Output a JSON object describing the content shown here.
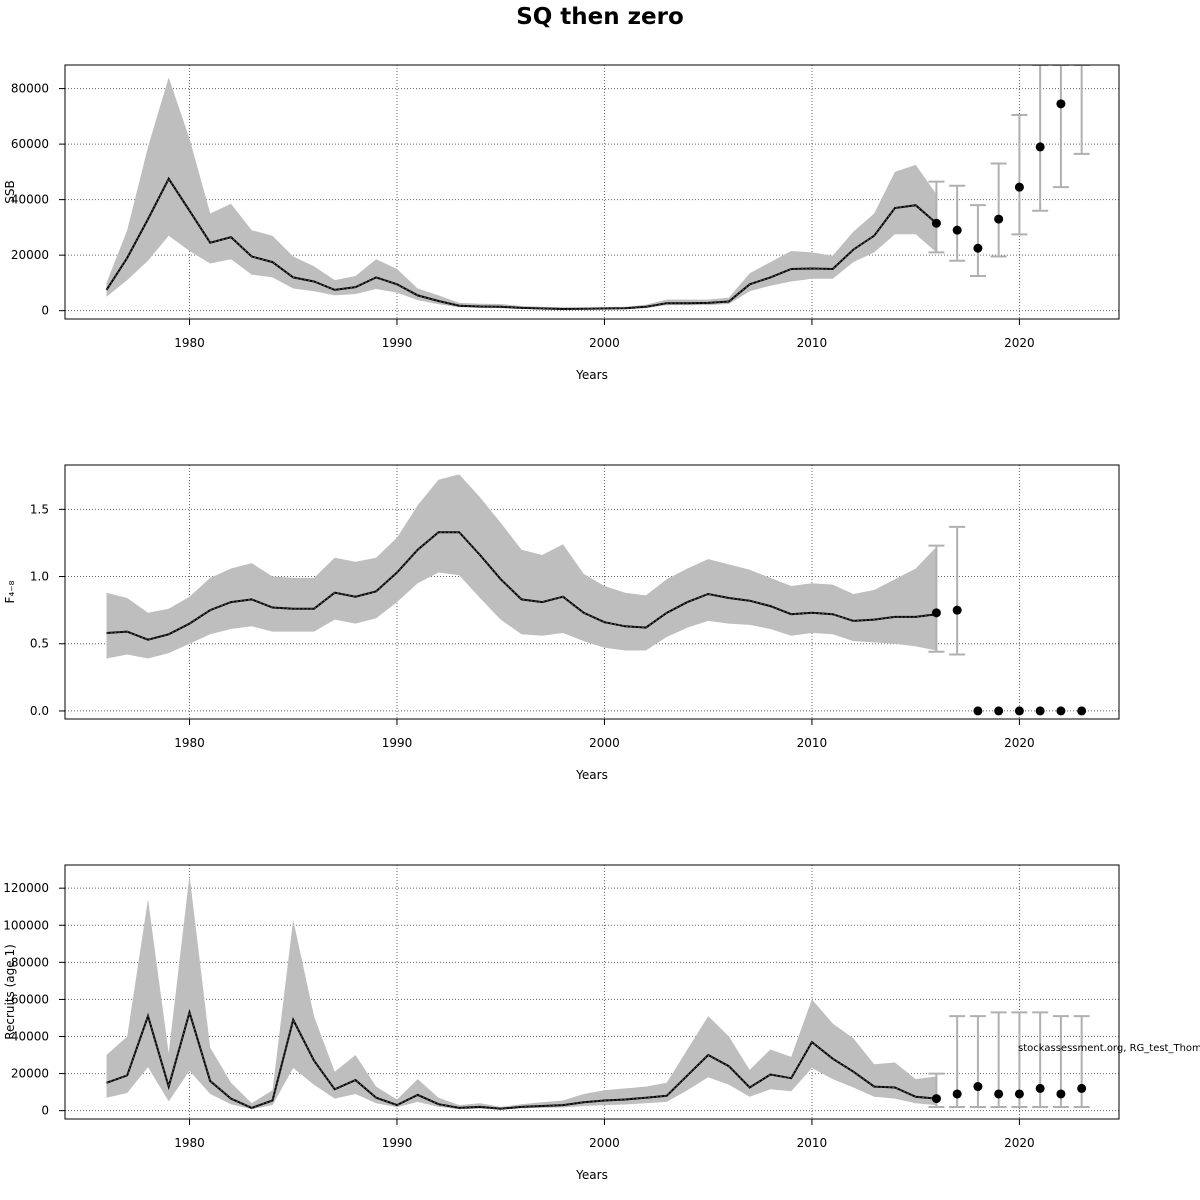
{
  "chart_data": {
    "title": "SQ then zero",
    "credit": "stockassessment.org, RG_test_Thom",
    "colors": {
      "band": "#bebebe",
      "line": "#000000",
      "grid": "#666666",
      "errorbar": "#b0b0b0",
      "point": "#000000"
    },
    "panels": [
      {
        "type": "line",
        "ylabel": "SSB",
        "xlabel": "Years",
        "xlim": [
          1974,
          2024.8
        ],
        "ylim": [
          -3000,
          88500
        ],
        "xticks": [
          1980,
          1990,
          2000,
          2010,
          2020
        ],
        "yticks": [
          0,
          20000,
          40000,
          60000,
          80000
        ],
        "grid": true,
        "estimate": {
          "years": [
            1976,
            1977,
            1978,
            1979,
            1980,
            1981,
            1982,
            1983,
            1984,
            1985,
            1986,
            1987,
            1988,
            1989,
            1990,
            1991,
            1992,
            1993,
            1994,
            1995,
            1996,
            1997,
            1998,
            1999,
            2000,
            2001,
            2002,
            2003,
            2004,
            2005,
            2006,
            2007,
            2008,
            2009,
            2010,
            2011,
            2012,
            2013,
            2014,
            2015,
            2016
          ],
          "mid": [
            7500,
            19000,
            33000,
            47500,
            36000,
            24500,
            26500,
            19500,
            17500,
            12000,
            10500,
            7500,
            8500,
            12000,
            9500,
            5500,
            3500,
            1800,
            1500,
            1400,
            1000,
            800,
            600,
            700,
            800,
            900,
            1400,
            2700,
            2700,
            2800,
            3300,
            9500,
            12000,
            15000,
            15200,
            15000,
            22000,
            27000,
            37000,
            38000,
            31500
          ],
          "low": [
            5000,
            11000,
            18000,
            27000,
            21500,
            17000,
            18500,
            13000,
            12000,
            8000,
            7000,
            5500,
            6000,
            7800,
            6500,
            3800,
            2300,
            1200,
            1000,
            900,
            600,
            500,
            400,
            400,
            500,
            600,
            900,
            2000,
            2000,
            2000,
            2400,
            7000,
            9000,
            10500,
            11500,
            11500,
            17500,
            21000,
            27500,
            27500,
            21000
          ],
          "high": [
            10000,
            29000,
            59000,
            84000,
            62000,
            35000,
            38500,
            29000,
            27000,
            19500,
            16000,
            11000,
            12500,
            18500,
            15000,
            8000,
            5500,
            2800,
            2500,
            2400,
            1700,
            1400,
            1200,
            1100,
            1300,
            1400,
            2100,
            4000,
            4000,
            4000,
            4700,
            13500,
            17500,
            21500,
            21000,
            19800,
            28500,
            35000,
            50000,
            52500,
            42000
          ]
        },
        "forecast": {
          "years": [
            2016,
            2017,
            2018,
            2019,
            2020,
            2021,
            2022,
            2023
          ],
          "median": [
            31500,
            29000,
            22500,
            33000,
            44500,
            59000,
            74500,
            null
          ],
          "low": [
            21000,
            18000,
            12500,
            19500,
            27500,
            36000,
            44500,
            56500
          ],
          "high": [
            46500,
            45000,
            38000,
            53000,
            70500,
            88500,
            88500,
            88500
          ]
        }
      },
      {
        "type": "line",
        "ylabel": "F₄₋₈",
        "xlabel": "Years",
        "xlim": [
          1974,
          2024.8
        ],
        "ylim": [
          -0.06,
          1.83
        ],
        "xticks": [
          1980,
          1990,
          2000,
          2010,
          2020
        ],
        "yticks": [
          0.0,
          0.5,
          1.0,
          1.5
        ],
        "ytick_labels": [
          "0.0",
          "0.5",
          "1.0",
          "1.5"
        ],
        "grid": true,
        "estimate": {
          "years": [
            1976,
            1977,
            1978,
            1979,
            1980,
            1981,
            1982,
            1983,
            1984,
            1985,
            1986,
            1987,
            1988,
            1989,
            1990,
            1991,
            1992,
            1993,
            1994,
            1995,
            1996,
            1997,
            1998,
            1999,
            2000,
            2001,
            2002,
            2003,
            2004,
            2005,
            2006,
            2007,
            2008,
            2009,
            2010,
            2011,
            2012,
            2013,
            2014,
            2015,
            2016
          ],
          "mid": [
            0.58,
            0.59,
            0.53,
            0.57,
            0.65,
            0.75,
            0.81,
            0.83,
            0.77,
            0.76,
            0.76,
            0.88,
            0.85,
            0.89,
            1.03,
            1.2,
            1.33,
            1.33,
            1.16,
            0.98,
            0.83,
            0.81,
            0.85,
            0.73,
            0.66,
            0.63,
            0.62,
            0.73,
            0.81,
            0.87,
            0.84,
            0.82,
            0.78,
            0.72,
            0.73,
            0.72,
            0.67,
            0.68,
            0.7,
            0.7,
            0.72
          ],
          "low": [
            0.39,
            0.42,
            0.39,
            0.43,
            0.5,
            0.57,
            0.61,
            0.63,
            0.59,
            0.59,
            0.59,
            0.68,
            0.65,
            0.69,
            0.81,
            0.95,
            1.03,
            1.01,
            0.84,
            0.68,
            0.57,
            0.56,
            0.58,
            0.52,
            0.47,
            0.45,
            0.45,
            0.55,
            0.62,
            0.67,
            0.65,
            0.64,
            0.61,
            0.56,
            0.58,
            0.57,
            0.52,
            0.51,
            0.5,
            0.48,
            0.45
          ],
          "high": [
            0.88,
            0.84,
            0.73,
            0.76,
            0.85,
            0.99,
            1.06,
            1.1,
            1.0,
            0.99,
            0.99,
            1.14,
            1.11,
            1.14,
            1.29,
            1.53,
            1.72,
            1.76,
            1.59,
            1.4,
            1.2,
            1.16,
            1.24,
            1.02,
            0.93,
            0.88,
            0.86,
            0.98,
            1.06,
            1.13,
            1.09,
            1.05,
            0.99,
            0.93,
            0.95,
            0.94,
            0.87,
            0.9,
            0.98,
            1.06,
            1.22
          ]
        },
        "forecast": {
          "years": [
            2016,
            2017,
            2018,
            2019,
            2020,
            2021,
            2022,
            2023
          ],
          "median": [
            0.73,
            0.75,
            0.0,
            0.0,
            0.0,
            0.0,
            0.0,
            0.0
          ],
          "low": [
            0.44,
            0.42,
            null,
            null,
            null,
            null,
            null,
            null
          ],
          "high": [
            1.23,
            1.37,
            null,
            null,
            null,
            null,
            null,
            null
          ]
        }
      },
      {
        "type": "line",
        "ylabel": "Recruits (age 1)",
        "xlabel": "Years",
        "xlim": [
          1974,
          2024.8
        ],
        "ylim": [
          -4500,
          132500
        ],
        "xticks": [
          1980,
          1990,
          2000,
          2010,
          2020
        ],
        "yticks": [
          0,
          20000,
          40000,
          60000,
          80000,
          100000,
          120000
        ],
        "grid": true,
        "estimate": {
          "years": [
            1976,
            1977,
            1978,
            1979,
            1980,
            1981,
            1982,
            1983,
            1984,
            1985,
            1986,
            1987,
            1988,
            1989,
            1990,
            1991,
            1992,
            1993,
            1994,
            1995,
            1996,
            1997,
            1998,
            1999,
            2000,
            2001,
            2002,
            2003,
            2004,
            2005,
            2006,
            2007,
            2008,
            2009,
            2010,
            2011,
            2012,
            2013,
            2014,
            2015,
            2016
          ],
          "mid": [
            15000,
            19000,
            51000,
            13000,
            53000,
            16000,
            6500,
            1500,
            5500,
            49000,
            27000,
            11500,
            16500,
            7000,
            3000,
            8500,
            3500,
            1500,
            2000,
            1000,
            2000,
            2500,
            3000,
            4500,
            5500,
            6000,
            7000,
            8000,
            19000,
            30000,
            24000,
            12500,
            19500,
            17500,
            37000,
            28000,
            21000,
            13000,
            12500,
            7500,
            6500
          ],
          "low": [
            7000,
            9500,
            23500,
            5000,
            21500,
            9000,
            3500,
            800,
            3000,
            23000,
            14000,
            6500,
            9000,
            4000,
            1800,
            4700,
            2000,
            800,
            1000,
            600,
            1200,
            1500,
            1700,
            2500,
            3000,
            3300,
            4000,
            4700,
            11000,
            18000,
            14000,
            7500,
            11500,
            10500,
            23000,
            17000,
            12500,
            7500,
            6500,
            4000,
            3000
          ],
          "high": [
            30000,
            40000,
            114000,
            31000,
            127000,
            34000,
            15000,
            4000,
            11000,
            103000,
            51000,
            21000,
            30000,
            13000,
            6000,
            17000,
            7000,
            3000,
            4000,
            2000,
            3500,
            4500,
            5500,
            9000,
            11000,
            12000,
            13000,
            15000,
            33000,
            51000,
            40000,
            22000,
            33000,
            29000,
            60000,
            47000,
            39000,
            25000,
            26000,
            17000,
            18500
          ]
        },
        "forecast": {
          "years": [
            2016,
            2017,
            2018,
            2019,
            2020,
            2021,
            2022,
            2023
          ],
          "median": [
            6500,
            9000,
            13000,
            9000,
            9000,
            12000,
            9000,
            12000
          ],
          "low": [
            2000,
            2000,
            2000,
            2000,
            2000,
            2000,
            2000,
            2000
          ],
          "high": [
            20000,
            51000,
            51000,
            53000,
            53000,
            53000,
            51000,
            51000
          ]
        }
      }
    ]
  }
}
